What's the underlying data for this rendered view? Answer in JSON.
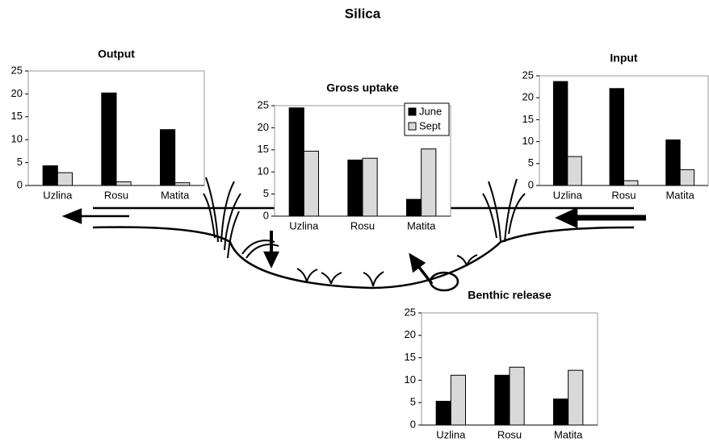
{
  "title": "Silica",
  "chart_data": [
    {
      "type": "bar",
      "title": "Output",
      "categories": [
        "Uzlina",
        "Rosu",
        "Matita"
      ],
      "series": [
        {
          "color": "#000000",
          "values": [
            4.3,
            20.2,
            12.2
          ]
        },
        {
          "color": "#d9d9d9",
          "values": [
            2.8,
            0.8,
            0.6
          ]
        }
      ],
      "ylim": [
        0,
        25
      ],
      "yticks": [
        0,
        5,
        10,
        15,
        20,
        25
      ]
    },
    {
      "type": "bar",
      "title": "Gross uptake",
      "categories": [
        "Uzlina",
        "Rosu",
        "Matita"
      ],
      "series": [
        {
          "name": "June",
          "color": "#000000",
          "values": [
            24.5,
            12.7,
            3.8
          ]
        },
        {
          "name": "Sept",
          "color": "#d9d9d9",
          "values": [
            14.7,
            13.1,
            15.2
          ]
        }
      ],
      "ylim": [
        0,
        25
      ],
      "yticks": [
        0,
        5,
        10,
        15,
        20,
        25
      ],
      "legend": "top-right"
    },
    {
      "type": "bar",
      "title": "Input",
      "categories": [
        "Uzlina",
        "Rosu",
        "Matita"
      ],
      "series": [
        {
          "color": "#000000",
          "values": [
            23.7,
            22.1,
            10.4
          ]
        },
        {
          "color": "#d9d9d9",
          "values": [
            6.6,
            1.1,
            3.6
          ]
        }
      ],
      "ylim": [
        0,
        25
      ],
      "yticks": [
        0,
        5,
        10,
        15,
        20,
        25
      ]
    },
    {
      "type": "bar",
      "title": "Benthic release",
      "categories": [
        "Uzlina",
        "Rosu",
        "Matita"
      ],
      "series": [
        {
          "color": "#000000",
          "values": [
            5.3,
            11.1,
            5.8
          ]
        },
        {
          "color": "#d9d9d9",
          "values": [
            11.1,
            12.9,
            12.2
          ]
        }
      ],
      "ylim": [
        0,
        25
      ],
      "yticks": [
        0,
        5,
        10,
        15,
        20,
        25
      ]
    }
  ]
}
